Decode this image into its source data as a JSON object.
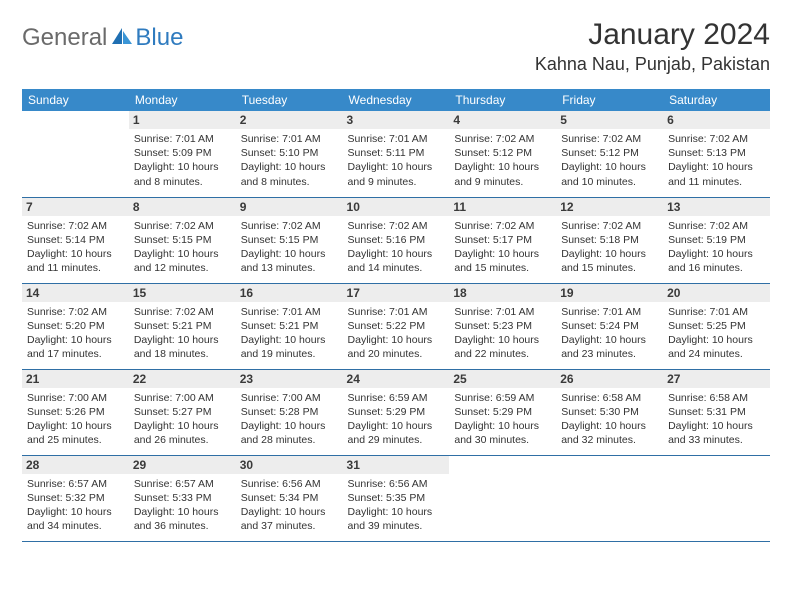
{
  "logo": {
    "general": "General",
    "blue": "Blue"
  },
  "title": "January 2024",
  "location": "Kahna Nau, Punjab, Pakistan",
  "colors": {
    "header_bg": "#3789c9",
    "header_text": "#ffffff",
    "daynum_bg": "#ededed",
    "border": "#2f6fa5",
    "logo_grey": "#6a6a6a",
    "logo_blue": "#2f7bbf"
  },
  "weekdays": [
    "Sunday",
    "Monday",
    "Tuesday",
    "Wednesday",
    "Thursday",
    "Friday",
    "Saturday"
  ],
  "weeks": [
    [
      {
        "n": "",
        "sun": "",
        "set": "",
        "day": ""
      },
      {
        "n": "1",
        "sun": "Sunrise: 7:01 AM",
        "set": "Sunset: 5:09 PM",
        "day": "Daylight: 10 hours and 8 minutes."
      },
      {
        "n": "2",
        "sun": "Sunrise: 7:01 AM",
        "set": "Sunset: 5:10 PM",
        "day": "Daylight: 10 hours and 8 minutes."
      },
      {
        "n": "3",
        "sun": "Sunrise: 7:01 AM",
        "set": "Sunset: 5:11 PM",
        "day": "Daylight: 10 hours and 9 minutes."
      },
      {
        "n": "4",
        "sun": "Sunrise: 7:02 AM",
        "set": "Sunset: 5:12 PM",
        "day": "Daylight: 10 hours and 9 minutes."
      },
      {
        "n": "5",
        "sun": "Sunrise: 7:02 AM",
        "set": "Sunset: 5:12 PM",
        "day": "Daylight: 10 hours and 10 minutes."
      },
      {
        "n": "6",
        "sun": "Sunrise: 7:02 AM",
        "set": "Sunset: 5:13 PM",
        "day": "Daylight: 10 hours and 11 minutes."
      }
    ],
    [
      {
        "n": "7",
        "sun": "Sunrise: 7:02 AM",
        "set": "Sunset: 5:14 PM",
        "day": "Daylight: 10 hours and 11 minutes."
      },
      {
        "n": "8",
        "sun": "Sunrise: 7:02 AM",
        "set": "Sunset: 5:15 PM",
        "day": "Daylight: 10 hours and 12 minutes."
      },
      {
        "n": "9",
        "sun": "Sunrise: 7:02 AM",
        "set": "Sunset: 5:15 PM",
        "day": "Daylight: 10 hours and 13 minutes."
      },
      {
        "n": "10",
        "sun": "Sunrise: 7:02 AM",
        "set": "Sunset: 5:16 PM",
        "day": "Daylight: 10 hours and 14 minutes."
      },
      {
        "n": "11",
        "sun": "Sunrise: 7:02 AM",
        "set": "Sunset: 5:17 PM",
        "day": "Daylight: 10 hours and 15 minutes."
      },
      {
        "n": "12",
        "sun": "Sunrise: 7:02 AM",
        "set": "Sunset: 5:18 PM",
        "day": "Daylight: 10 hours and 15 minutes."
      },
      {
        "n": "13",
        "sun": "Sunrise: 7:02 AM",
        "set": "Sunset: 5:19 PM",
        "day": "Daylight: 10 hours and 16 minutes."
      }
    ],
    [
      {
        "n": "14",
        "sun": "Sunrise: 7:02 AM",
        "set": "Sunset: 5:20 PM",
        "day": "Daylight: 10 hours and 17 minutes."
      },
      {
        "n": "15",
        "sun": "Sunrise: 7:02 AM",
        "set": "Sunset: 5:21 PM",
        "day": "Daylight: 10 hours and 18 minutes."
      },
      {
        "n": "16",
        "sun": "Sunrise: 7:01 AM",
        "set": "Sunset: 5:21 PM",
        "day": "Daylight: 10 hours and 19 minutes."
      },
      {
        "n": "17",
        "sun": "Sunrise: 7:01 AM",
        "set": "Sunset: 5:22 PM",
        "day": "Daylight: 10 hours and 20 minutes."
      },
      {
        "n": "18",
        "sun": "Sunrise: 7:01 AM",
        "set": "Sunset: 5:23 PM",
        "day": "Daylight: 10 hours and 22 minutes."
      },
      {
        "n": "19",
        "sun": "Sunrise: 7:01 AM",
        "set": "Sunset: 5:24 PM",
        "day": "Daylight: 10 hours and 23 minutes."
      },
      {
        "n": "20",
        "sun": "Sunrise: 7:01 AM",
        "set": "Sunset: 5:25 PM",
        "day": "Daylight: 10 hours and 24 minutes."
      }
    ],
    [
      {
        "n": "21",
        "sun": "Sunrise: 7:00 AM",
        "set": "Sunset: 5:26 PM",
        "day": "Daylight: 10 hours and 25 minutes."
      },
      {
        "n": "22",
        "sun": "Sunrise: 7:00 AM",
        "set": "Sunset: 5:27 PM",
        "day": "Daylight: 10 hours and 26 minutes."
      },
      {
        "n": "23",
        "sun": "Sunrise: 7:00 AM",
        "set": "Sunset: 5:28 PM",
        "day": "Daylight: 10 hours and 28 minutes."
      },
      {
        "n": "24",
        "sun": "Sunrise: 6:59 AM",
        "set": "Sunset: 5:29 PM",
        "day": "Daylight: 10 hours and 29 minutes."
      },
      {
        "n": "25",
        "sun": "Sunrise: 6:59 AM",
        "set": "Sunset: 5:29 PM",
        "day": "Daylight: 10 hours and 30 minutes."
      },
      {
        "n": "26",
        "sun": "Sunrise: 6:58 AM",
        "set": "Sunset: 5:30 PM",
        "day": "Daylight: 10 hours and 32 minutes."
      },
      {
        "n": "27",
        "sun": "Sunrise: 6:58 AM",
        "set": "Sunset: 5:31 PM",
        "day": "Daylight: 10 hours and 33 minutes."
      }
    ],
    [
      {
        "n": "28",
        "sun": "Sunrise: 6:57 AM",
        "set": "Sunset: 5:32 PM",
        "day": "Daylight: 10 hours and 34 minutes."
      },
      {
        "n": "29",
        "sun": "Sunrise: 6:57 AM",
        "set": "Sunset: 5:33 PM",
        "day": "Daylight: 10 hours and 36 minutes."
      },
      {
        "n": "30",
        "sun": "Sunrise: 6:56 AM",
        "set": "Sunset: 5:34 PM",
        "day": "Daylight: 10 hours and 37 minutes."
      },
      {
        "n": "31",
        "sun": "Sunrise: 6:56 AM",
        "set": "Sunset: 5:35 PM",
        "day": "Daylight: 10 hours and 39 minutes."
      },
      {
        "n": "",
        "sun": "",
        "set": "",
        "day": ""
      },
      {
        "n": "",
        "sun": "",
        "set": "",
        "day": ""
      },
      {
        "n": "",
        "sun": "",
        "set": "",
        "day": ""
      }
    ]
  ]
}
